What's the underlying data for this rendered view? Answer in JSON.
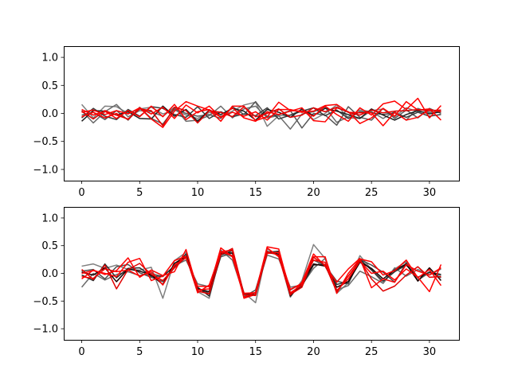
{
  "chart_data": [
    {
      "type": "line",
      "title": "",
      "xlabel": "",
      "ylabel": "",
      "xlim": [
        -1.55,
        32.55
      ],
      "ylim": [
        -1.2,
        1.2
      ],
      "xticks": [
        0,
        5,
        10,
        15,
        20,
        25,
        30
      ],
      "yticks": [
        -1.0,
        -0.5,
        0.0,
        0.5,
        1.0
      ],
      "grid": false,
      "legend": "none",
      "series": [
        {
          "color": "#7f7f7f",
          "values": [
            0.16,
            -0.08,
            0.13,
            0.12,
            0.0,
            0.08,
            0.11,
            -0.01,
            0.06,
            -0.03,
            -0.09,
            0.02,
            -0.05,
            0.04,
            0.15,
            0.2,
            -0.23,
            -0.04,
            -0.03,
            0.07,
            -0.11,
            0.0,
            0.15,
            -0.08,
            -0.09,
            0.05,
            0.08,
            -0.06,
            0.1,
            0.03,
            0.01,
            0.05
          ]
        },
        {
          "color": "#6b6b6b",
          "values": [
            0.05,
            -0.17,
            0.03,
            0.16,
            -0.06,
            0.05,
            0.03,
            -0.05,
            0.11,
            -0.14,
            -0.12,
            -0.04,
            0.13,
            -0.08,
            0.08,
            0.13,
            -0.08,
            -0.04,
            -0.28,
            -0.01,
            0.03,
            0.11,
            -0.16,
            -0.06,
            0.06,
            0.03,
            -0.09,
            0.03,
            -0.12,
            0.09,
            0.02,
            0.04
          ]
        },
        {
          "color": "#575757",
          "values": [
            -0.03,
            0.02,
            -0.11,
            0.05,
            -0.12,
            0.11,
            -0.09,
            -0.19,
            0.08,
            0.0,
            -0.05,
            -0.02,
            -0.09,
            0.12,
            -0.02,
            0.21,
            -0.06,
            -0.02,
            0.05,
            -0.26,
            0.0,
            -0.03,
            -0.21,
            0.12,
            -0.07,
            -0.12,
            0.09,
            -0.09,
            0.06,
            -0.08,
            0.09,
            0.0
          ]
        },
        {
          "color": "#3d3d3d",
          "values": [
            -0.08,
            0.09,
            -0.05,
            -0.11,
            0.07,
            -0.05,
            0.12,
            0.09,
            -0.02,
            -0.07,
            0.12,
            -0.09,
            0.03,
            -0.06,
            -0.01,
            -0.04,
            0.1,
            -0.1,
            -0.03,
            0.04,
            0.1,
            -0.04,
            0.06,
            -0.09,
            0.03,
            0.01,
            -0.02,
            0.01,
            -0.07,
            0.02,
            -0.05,
            -0.02
          ]
        },
        {
          "color": "#1f1f1f",
          "values": [
            -0.14,
            0.05,
            0.04,
            -0.03,
            0.03,
            -0.09,
            -0.1,
            0.13,
            -0.05,
            0.07,
            -0.14,
            0.06,
            -0.02,
            0.09,
            0.04,
            -0.12,
            0.07,
            0.02,
            -0.07,
            0.08,
            -0.04,
            0.09,
            0.04,
            -0.02,
            -0.09,
            0.08,
            -0.03,
            -0.12,
            -0.02,
            0.05,
            -0.01,
            0.03
          ]
        },
        {
          "color": "#ff0000",
          "values": [
            0.02,
            0.06,
            -0.02,
            0.05,
            -0.01,
            0.1,
            -0.1,
            -0.25,
            0.04,
            0.21,
            0.13,
            0.06,
            -0.14,
            0.13,
            0.13,
            -0.13,
            -0.06,
            0.2,
            0.05,
            0.04,
            -0.05,
            0.13,
            -0.02,
            -0.14,
            0.1,
            -0.03,
            0.17,
            0.22,
            0.07,
            0.27,
            -0.08,
            0.14
          ]
        },
        {
          "color": "#ff0000",
          "values": [
            0.07,
            -0.03,
            0.04,
            -0.09,
            0.05,
            -0.06,
            0.13,
            -0.06,
            0.16,
            -0.11,
            0.03,
            0.07,
            -0.07,
            0.02,
            -0.05,
            0.03,
            -0.12,
            0.07,
            0.07,
            0.02,
            0.04,
            0.14,
            0.16,
            0.02,
            0.01,
            0.01,
            -0.22,
            0.02,
            -0.12,
            -0.07,
            0.07,
            0.03
          ]
        },
        {
          "color": "#ff0000",
          "values": [
            -0.06,
            0.02,
            -0.08,
            0.0,
            -0.11,
            0.1,
            -0.01,
            0.11,
            -0.09,
            0.15,
            0.01,
            0.13,
            -0.07,
            0.1,
            -0.08,
            -0.14,
            0.03,
            -0.02,
            0.04,
            0.1,
            -0.13,
            -0.15,
            0.1,
            0.03,
            -0.18,
            -0.08,
            0.09,
            -0.05,
            0.21,
            0.06,
            0.08,
            -0.12
          ]
        },
        {
          "color": "#e00000",
          "values": [
            0.04,
            -0.1,
            0.05,
            -0.03,
            -0.1,
            0.08,
            0.05,
            -0.22,
            0.11,
            0.05,
            -0.17,
            0.05,
            0.02,
            -0.06,
            0.12,
            -0.06,
            0.0,
            0.08,
            -0.07,
            -0.03,
            0.1,
            0.03,
            0.11,
            0.02,
            -0.03,
            0.06,
            0.01,
            0.04,
            0.05,
            0.07,
            0.05,
            0.06
          ]
        }
      ]
    },
    {
      "type": "line",
      "title": "",
      "xlabel": "",
      "ylabel": "",
      "xlim": [
        -1.55,
        32.55
      ],
      "ylim": [
        -1.2,
        1.2
      ],
      "xticks": [
        0,
        5,
        10,
        15,
        20,
        25,
        30
      ],
      "yticks": [
        -1.0,
        -0.5,
        0.0,
        0.5,
        1.0
      ],
      "grid": false,
      "legend": "none",
      "series": [
        {
          "color": "#7f7f7f",
          "values": [
            0.13,
            0.17,
            0.09,
            0.15,
            0.07,
            0.06,
            0.11,
            -0.45,
            0.23,
            0.38,
            -0.33,
            -0.45,
            0.38,
            0.3,
            -0.35,
            -0.53,
            0.44,
            0.32,
            -0.43,
            -0.13,
            0.52,
            0.27,
            -0.36,
            -0.17,
            0.32,
            0.07,
            -0.18,
            0.08,
            0.21,
            -0.12,
            0.01,
            -0.04
          ]
        },
        {
          "color": "#6b6b6b",
          "values": [
            -0.25,
            0.0,
            -0.12,
            -0.02,
            0.03,
            -0.04,
            0.0,
            -0.06,
            0.14,
            0.24,
            -0.19,
            -0.24,
            0.42,
            0.24,
            -0.39,
            -0.35,
            0.33,
            0.26,
            -0.25,
            -0.21,
            0.09,
            0.27,
            -0.3,
            -0.22,
            0.04,
            -0.06,
            -0.18,
            0.1,
            -0.05,
            0.07,
            -0.03,
            0.08
          ]
        },
        {
          "color": "#4d4d4d",
          "values": [
            0.04,
            0.07,
            -0.1,
            0.12,
            0.16,
            0.01,
            -0.07,
            -0.15,
            0.1,
            0.29,
            -0.27,
            -0.36,
            0.3,
            0.37,
            -0.42,
            -0.3,
            0.4,
            0.34,
            -0.3,
            -0.18,
            0.24,
            0.14,
            -0.14,
            -0.19,
            0.25,
            0.15,
            0.02,
            -0.16,
            0.19,
            -0.13,
            0.03,
            -0.08
          ]
        },
        {
          "color": "#2a2a2a",
          "values": [
            -0.03,
            -0.13,
            0.17,
            -0.08,
            0.09,
            0.1,
            -0.05,
            -0.05,
            0.13,
            0.35,
            -0.25,
            -0.41,
            0.33,
            0.41,
            -0.37,
            -0.38,
            0.38,
            0.4,
            -0.36,
            -0.23,
            0.15,
            0.16,
            -0.2,
            -0.15,
            0.25,
            0.06,
            -0.14,
            0.03,
            0.15,
            -0.07,
            0.02,
            -0.02
          ]
        },
        {
          "color": "#1a0000",
          "values": [
            0.02,
            -0.03,
            0.1,
            -0.15,
            0.08,
            0.04,
            -0.03,
            -0.2,
            0.18,
            0.31,
            -0.28,
            -0.33,
            0.36,
            0.37,
            -0.44,
            -0.38,
            0.37,
            0.35,
            -0.41,
            -0.17,
            0.17,
            0.13,
            -0.25,
            -0.15,
            0.2,
            0.09,
            -0.1,
            0.06,
            0.17,
            -0.14,
            0.1,
            -0.13
          ]
        },
        {
          "color": "#ff0000",
          "values": [
            -0.1,
            0.06,
            -0.02,
            0.05,
            0.28,
            -0.07,
            0.06,
            -0.04,
            0.03,
            0.43,
            -0.3,
            -0.28,
            0.46,
            0.3,
            -0.43,
            -0.34,
            0.48,
            0.44,
            -0.35,
            -0.21,
            0.3,
            0.3,
            -0.36,
            0.0,
            0.26,
            0.21,
            -0.03,
            0.05,
            0.24,
            -0.08,
            0.07,
            -0.22
          ]
        },
        {
          "color": "#ff0000",
          "values": [
            0.0,
            0.05,
            0.0,
            -0.06,
            0.2,
            0.27,
            -0.13,
            -0.05,
            0.23,
            0.31,
            -0.35,
            -0.21,
            0.39,
            0.42,
            -0.45,
            -0.38,
            0.46,
            0.3,
            -0.39,
            -0.16,
            0.35,
            0.13,
            -0.16,
            0.08,
            0.27,
            -0.26,
            -0.1,
            -0.16,
            0.16,
            0.04,
            -0.03,
            0.1
          ]
        },
        {
          "color": "#ff0000",
          "values": [
            -0.06,
            -0.09,
            0.08,
            0.03,
            0.06,
            -0.05,
            0.03,
            -0.21,
            0.15,
            0.28,
            -0.23,
            -0.24,
            0.39,
            0.32,
            -0.36,
            -0.35,
            0.36,
            0.38,
            -0.29,
            -0.18,
            0.24,
            0.2,
            -0.31,
            -0.1,
            0.22,
            0.0,
            0.04,
            -0.12,
            0.08,
            -0.07,
            -0.33,
            0.16
          ]
        },
        {
          "color": "#e00000",
          "values": [
            0.07,
            -0.11,
            0.15,
            -0.28,
            0.07,
            0.18,
            -0.02,
            -0.13,
            0.1,
            0.3,
            -0.32,
            -0.37,
            0.34,
            0.45,
            -0.38,
            -0.4,
            0.39,
            0.33,
            -0.38,
            -0.25,
            0.29,
            0.15,
            -0.33,
            -0.05,
            0.23,
            -0.1,
            -0.32,
            -0.23,
            -0.03,
            0.12,
            -0.07,
            -0.06
          ]
        }
      ]
    }
  ]
}
